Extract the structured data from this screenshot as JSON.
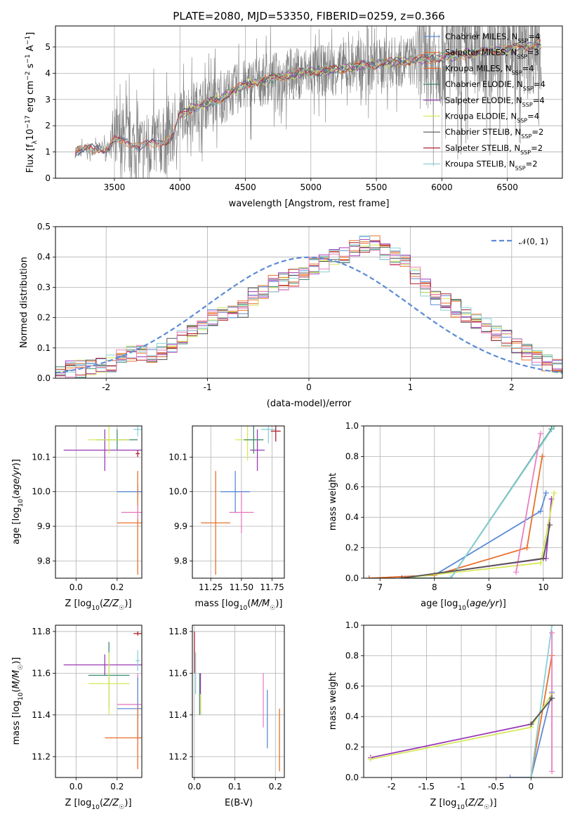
{
  "figure": {
    "title": "PLATE=2080, MJD=53350, FIBERID=0259, z=0.366"
  },
  "colors": {
    "Chabrier MILES": "#5b8bd6",
    "Salpeter MILES": "#e8702a",
    "Kroupa MILES": "#e8702a",
    "Chabrier ELODIE": "#3a8a6e",
    "Salpeter ELODIE": "#9b39b8",
    "Kroupa ELODIE": "#d6e85a",
    "Chabrier STELIB": "#555555",
    "Salpeter STELIB": "#b0202a",
    "Kroupa STELIB": "#88d0d8",
    "pink": "#e87fc0",
    "data": "#7f7f7f"
  },
  "chart_data": [
    {
      "id": "spectrum",
      "type": "line",
      "xlabel": "wavelength [Angstrom, rest frame]",
      "ylabel": "Flux [f_λ 10^-17 erg cm^-2 s^-1 A^-1]",
      "xlim": [
        3050,
        6920
      ],
      "ylim": [
        0,
        5.8
      ],
      "xticks": [
        3500,
        4000,
        4500,
        5000,
        5500,
        6000,
        6500
      ],
      "yticks": [
        0,
        1,
        2,
        3,
        4,
        5
      ],
      "legend_position": "top-right",
      "legend": [
        {
          "text": "Chabrier MILES, N_SSP=4",
          "key": "Chabrier MILES"
        },
        {
          "text": "Salpeter MILES, N_SSP=3",
          "key": "Salpeter MILES"
        },
        {
          "text": "Kroupa MILES, N_SSP=4",
          "key": "Kroupa MILES"
        },
        {
          "text": "Chabrier ELODIE, N_SSP=4",
          "key": "Chabrier ELODIE"
        },
        {
          "text": "Salpeter ELODIE, N_SSP=4",
          "key": "Salpeter ELODIE"
        },
        {
          "text": "Kroupa ELODIE, N_SSP=4",
          "key": "Kroupa ELODIE"
        },
        {
          "text": "Chabrier STELIB, N_SSP=2",
          "key": "Chabrier STELIB"
        },
        {
          "text": "Salpeter STELIB, N_SSP=2",
          "key": "Salpeter STELIB"
        },
        {
          "text": "Kroupa STELIB, N_SSP=2",
          "key": "Kroupa STELIB"
        }
      ],
      "continuum": {
        "x": [
          3200,
          3300,
          3450,
          3500,
          3600,
          3700,
          3800,
          3900,
          3950,
          4000,
          4100,
          4200,
          4300,
          4400,
          4500,
          4700,
          4900,
          5000,
          5200,
          5400,
          5600,
          5800,
          6000,
          6200,
          6400,
          6600,
          6750
        ],
        "y": [
          1.0,
          1.1,
          1.15,
          1.45,
          1.4,
          1.2,
          1.35,
          1.45,
          1.6,
          2.4,
          2.7,
          2.85,
          3.0,
          3.3,
          3.55,
          3.8,
          4.0,
          4.05,
          4.15,
          4.3,
          4.4,
          4.5,
          4.6,
          4.75,
          4.85,
          5.0,
          5.1
        ]
      }
    },
    {
      "id": "residuals",
      "type": "line",
      "xlabel": "(data-model)/error",
      "ylabel": "Normed distribution",
      "xlim": [
        -2.5,
        2.5
      ],
      "ylim": [
        0,
        0.5
      ],
      "xticks": [
        -2,
        -1,
        0,
        1,
        2
      ],
      "yticks": [
        0.0,
        0.1,
        0.2,
        0.3,
        0.4,
        0.5
      ],
      "legend": [
        {
          "text": "𝒩(0, 1)"
        }
      ],
      "legend_position": "top-right",
      "gaussian": {
        "mu": 0,
        "sigma": 1
      },
      "hist_base": [
        0.02,
        0.03,
        0.03,
        0.03,
        0.04,
        0.05,
        0.07,
        0.08,
        0.08,
        0.07,
        0.09,
        0.11,
        0.13,
        0.15,
        0.17,
        0.2,
        0.22,
        0.22,
        0.23,
        0.27,
        0.29,
        0.31,
        0.32,
        0.33,
        0.35,
        0.37,
        0.38,
        0.4,
        0.41,
        0.43,
        0.44,
        0.44,
        0.42,
        0.4,
        0.38,
        0.34,
        0.3,
        0.27,
        0.25,
        0.23,
        0.21,
        0.19,
        0.17,
        0.15,
        0.13,
        0.11,
        0.09,
        0.07,
        0.05,
        0.04
      ]
    },
    {
      "id": "age-z",
      "type": "scatter",
      "xlabel": "Z [log10(Z/Z☉)]",
      "ylabel": "age [log10(age/yr)]",
      "xlim": [
        -0.1,
        0.32
      ],
      "ylim": [
        9.75,
        10.19
      ],
      "xticks": [
        0.0,
        0.2
      ],
      "yticks": [
        9.8,
        9.9,
        10.0,
        10.1
      ]
    },
    {
      "id": "age-mass",
      "type": "scatter",
      "xlabel": "mass [log10(M/M☉)]",
      "ylabel": "",
      "xlim": [
        11.1,
        11.85
      ],
      "ylim": [
        9.75,
        10.19
      ],
      "xticks": [
        11.25,
        11.5,
        11.75
      ],
      "yticks": [
        9.8,
        9.9,
        10.0,
        10.1
      ]
    },
    {
      "id": "mw-age",
      "type": "line",
      "xlabel": "age [log10(age/yr)]",
      "ylabel": "mass weight",
      "xlim": [
        6.7,
        10.35
      ],
      "ylim": [
        0,
        1.0
      ],
      "xticks": [
        7,
        8,
        9,
        10
      ],
      "yticks": [
        0.0,
        0.2,
        0.4,
        0.6,
        0.8,
        1.0
      ]
    },
    {
      "id": "mass-z",
      "type": "scatter",
      "xlabel": "Z [log10(Z/Z☉)]",
      "ylabel": "mass [log10(M/M☉)]",
      "xlim": [
        -0.1,
        0.32
      ],
      "ylim": [
        11.1,
        11.83
      ],
      "xticks": [
        0.0,
        0.2
      ],
      "yticks": [
        11.2,
        11.4,
        11.6,
        11.8
      ]
    },
    {
      "id": "mass-ebv",
      "type": "scatter",
      "xlabel": "E(B-V)",
      "ylabel": "",
      "xlim": [
        -0.005,
        0.222
      ],
      "ylim": [
        11.1,
        11.83
      ],
      "xticks": [
        0.0,
        0.1,
        0.2
      ],
      "yticks": [
        11.2,
        11.4,
        11.6,
        11.8
      ]
    },
    {
      "id": "mw-z",
      "type": "line",
      "xlabel": "Z [log10(Z/Z☉)]",
      "ylabel": "mass weight",
      "xlim": [
        -2.4,
        0.45
      ],
      "ylim": [
        0,
        1.0
      ],
      "xticks": [
        -2.0,
        -1.5,
        -1.0,
        -0.5,
        0.0
      ],
      "yticks": [
        0.0,
        0.2,
        0.4,
        0.6,
        0.8,
        1.0
      ]
    }
  ]
}
